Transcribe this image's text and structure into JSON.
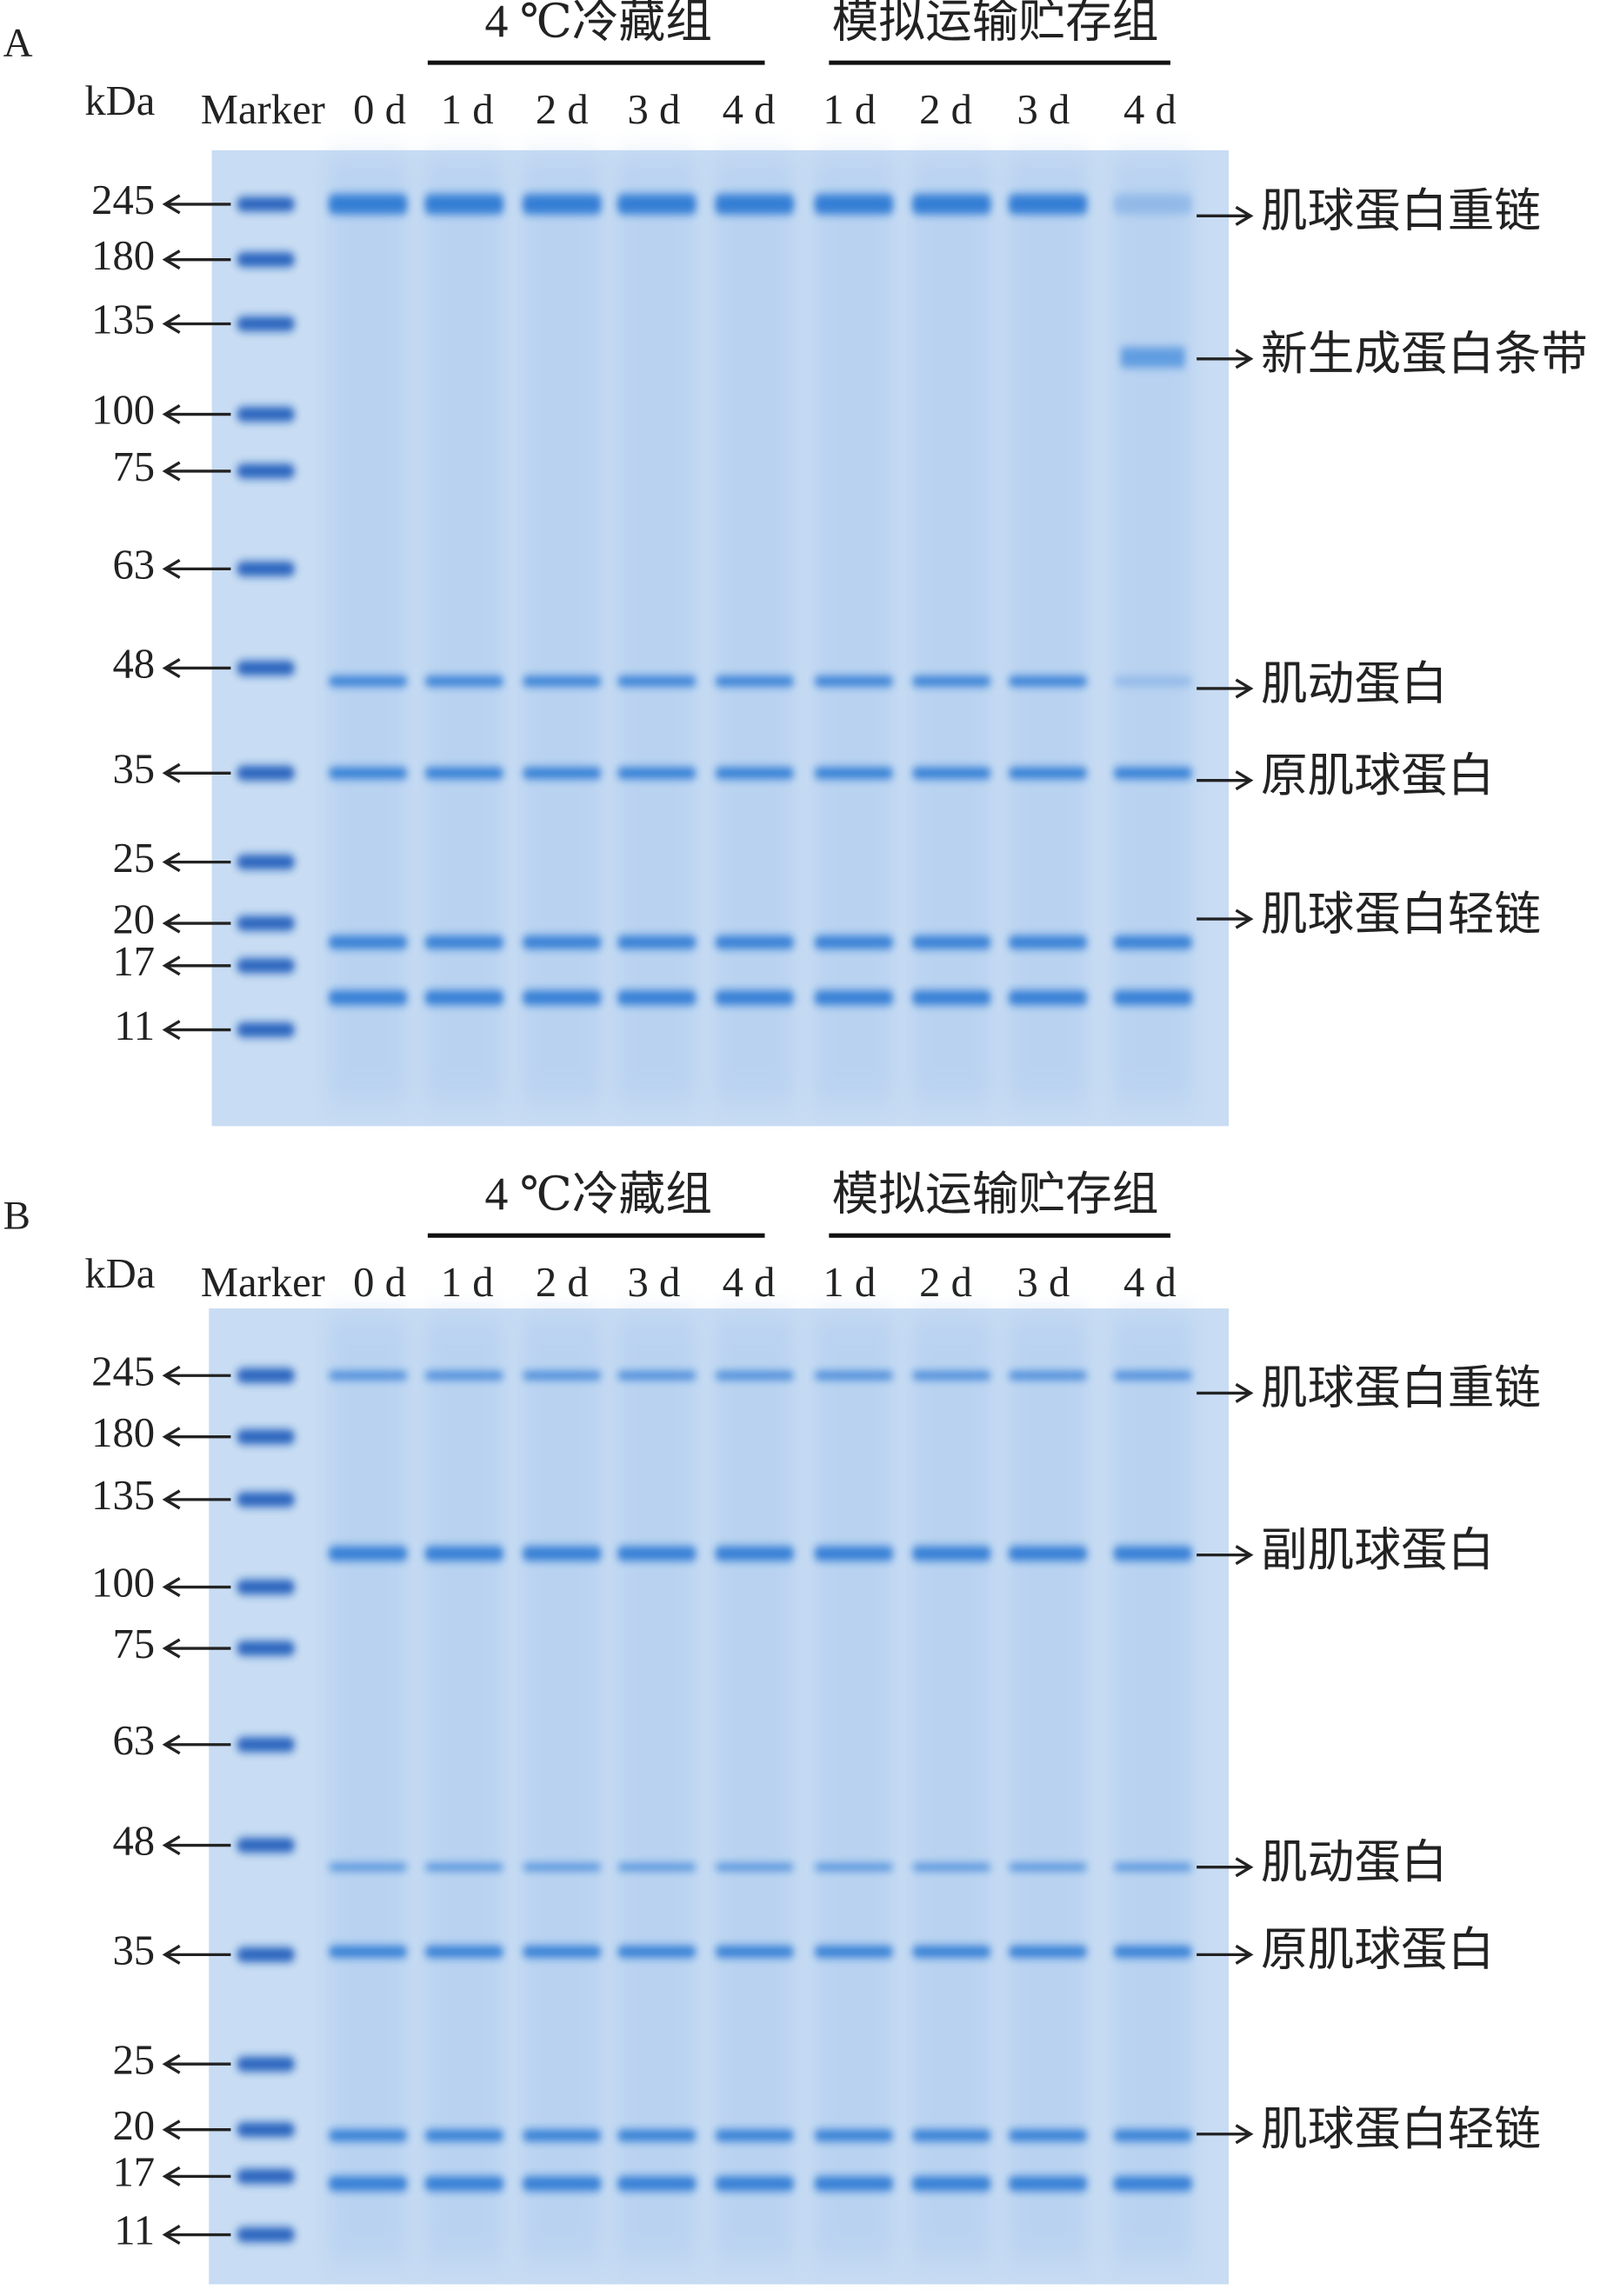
{
  "panels": [
    {
      "label": "A",
      "unit": "kDa",
      "groups": [
        "4 ℃冷藏组",
        "模拟运输贮存组"
      ],
      "lanes": [
        "Marker",
        "0 d",
        "1 d",
        "2 d",
        "3 d",
        "4 d",
        "1 d",
        "2 d",
        "3 d",
        "4 d"
      ],
      "markers": [
        "245",
        "180",
        "135",
        "100",
        "75",
        "63",
        "48",
        "35",
        "25",
        "20",
        "17",
        "11"
      ],
      "bands": [
        "肌球蛋白重链",
        "新生成蛋白条带",
        "肌动蛋白",
        "原肌球蛋白",
        "肌球蛋白轻链"
      ]
    },
    {
      "label": "B",
      "unit": "kDa",
      "groups": [
        "4 ℃冷藏组",
        "模拟运输贮存组"
      ],
      "lanes": [
        "Marker",
        "0 d",
        "1 d",
        "2 d",
        "3 d",
        "4 d",
        "1 d",
        "2 d",
        "3 d",
        "4 d"
      ],
      "markers": [
        "245",
        "180",
        "135",
        "100",
        "75",
        "63",
        "48",
        "35",
        "25",
        "20",
        "17",
        "11"
      ],
      "bands": [
        "肌球蛋白重链",
        "副肌球蛋白",
        "肌动蛋白",
        "原肌球蛋白",
        "肌球蛋白轻链"
      ]
    }
  ]
}
